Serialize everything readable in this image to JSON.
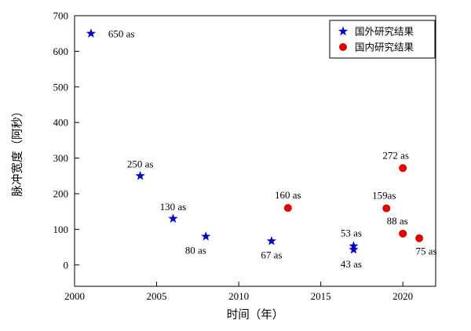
{
  "chart_data": {
    "type": "scatter",
    "title": "",
    "xlabel": "时间（年）",
    "ylabel": "脉冲宽度（阿秒）",
    "xlim": [
      2000,
      2022
    ],
    "ylim": [
      -60,
      700
    ],
    "x_ticks": [
      2000,
      2005,
      2010,
      2015,
      2020
    ],
    "y_ticks": [
      0,
      100,
      200,
      300,
      400,
      500,
      600,
      700
    ],
    "grid": false,
    "legend": {
      "position": "top-right",
      "entries": [
        {
          "label": "国外研究结果",
          "marker": "star",
          "color": "#0000cd"
        },
        {
          "label": "国内研究结果",
          "marker": "circle",
          "color": "#e60000"
        }
      ]
    },
    "series": [
      {
        "name": "国外研究结果",
        "marker": "star",
        "color": "#0000cd",
        "points": [
          {
            "x": 2001,
            "y": 650,
            "label": "650 as",
            "label_dx": 22,
            "label_dy": 5,
            "anchor": "start"
          },
          {
            "x": 2004,
            "y": 250,
            "label": "250 as",
            "label_dx": 0,
            "label_dy": -11,
            "anchor": "middle"
          },
          {
            "x": 2006,
            "y": 130,
            "label": "130 as",
            "label_dx": 0,
            "label_dy": -11,
            "anchor": "middle"
          },
          {
            "x": 2008,
            "y": 80,
            "label": "80 as",
            "label_dx": -13,
            "label_dy": 22,
            "anchor": "middle"
          },
          {
            "x": 2012,
            "y": 67,
            "label": "67 as",
            "label_dx": 0,
            "label_dy": 22,
            "anchor": "middle"
          },
          {
            "x": 2017,
            "y": 53,
            "label": "53 as",
            "label_dx": -3,
            "label_dy": -12,
            "anchor": "middle"
          },
          {
            "x": 2017,
            "y": 43,
            "label": "43 as",
            "label_dx": -3,
            "label_dy": 23,
            "anchor": "middle"
          }
        ]
      },
      {
        "name": "国内研究结果",
        "marker": "circle",
        "color": "#e60000",
        "points": [
          {
            "x": 2013,
            "y": 160,
            "label": "160 as",
            "label_dx": 0,
            "label_dy": -12,
            "anchor": "middle"
          },
          {
            "x": 2019,
            "y": 159,
            "label": "159as",
            "label_dx": -3,
            "label_dy": -12,
            "anchor": "middle"
          },
          {
            "x": 2020,
            "y": 272,
            "label": "272 as",
            "label_dx": -9,
            "label_dy": -12,
            "anchor": "middle"
          },
          {
            "x": 2020,
            "y": 88,
            "label": "88 as",
            "label_dx": -7,
            "label_dy": -12,
            "anchor": "middle"
          },
          {
            "x": 2021,
            "y": 75,
            "label": "75 as",
            "label_dx": 9,
            "label_dy": 21,
            "anchor": "middle"
          }
        ]
      }
    ]
  }
}
